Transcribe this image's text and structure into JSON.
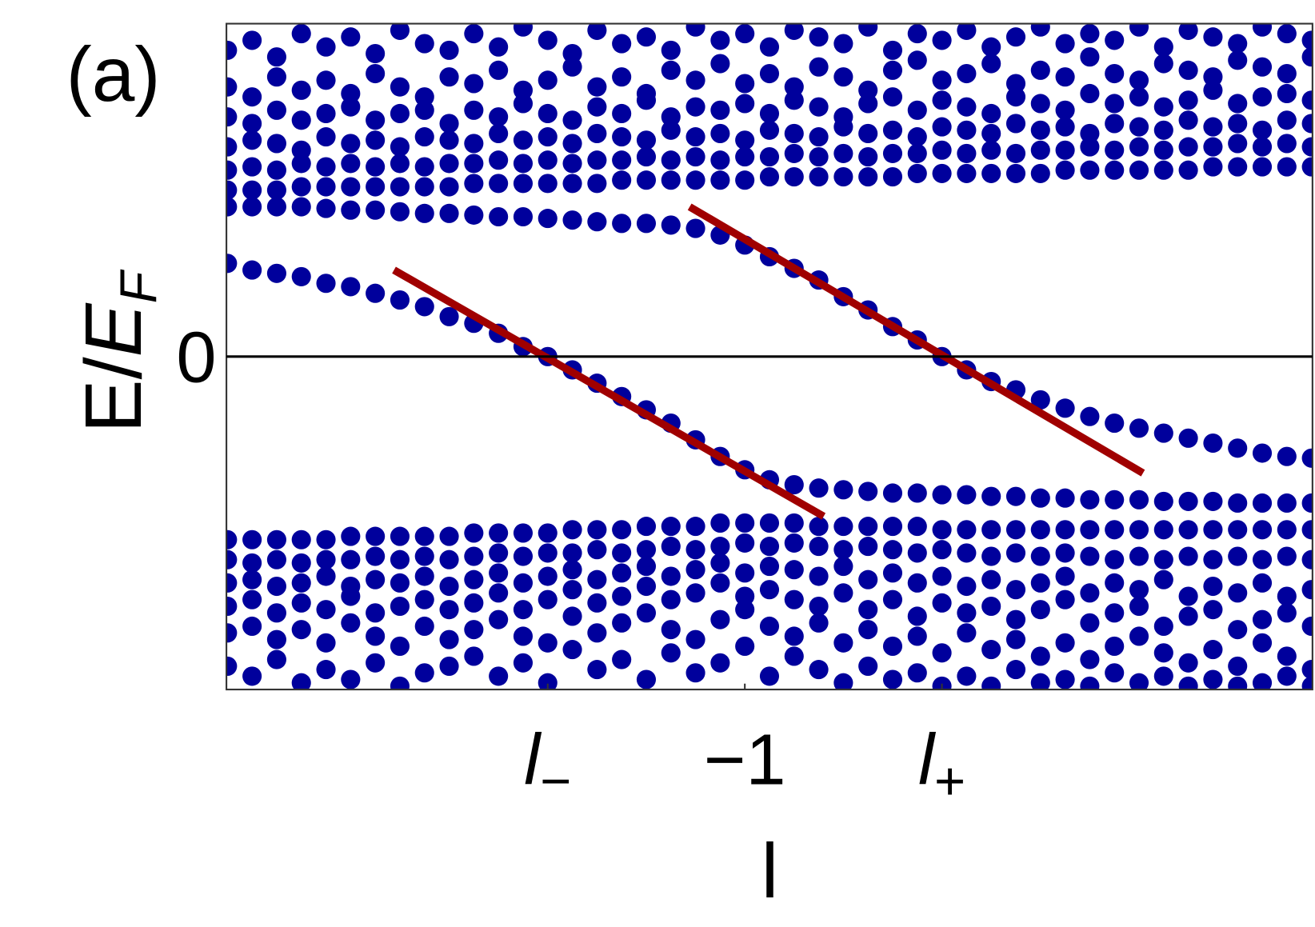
{
  "chart_data": {
    "type": "scatter",
    "panel_label": "(a)",
    "xlabel": "l",
    "ylabel": "E/EF",
    "xlim": [
      -3.63,
      1.88
    ],
    "ylim": [
      -1,
      1
    ],
    "xticks": [
      {
        "value": -2,
        "label": "l−"
      },
      {
        "value": -1,
        "label": "−1"
      },
      {
        "value": 0,
        "label": "l+"
      }
    ],
    "yticks": [
      0
    ],
    "grid": true,
    "x": [
      -3.625,
      -3.5,
      -3.375,
      -3.25,
      -3.125,
      -3,
      -2.875,
      -2.75,
      -2.625,
      -2.5,
      -2.375,
      -2.25,
      -2.125,
      -2,
      -1.875,
      -1.75,
      -1.625,
      -1.5,
      -1.375,
      -1.25,
      -1.125,
      -1,
      -0.875,
      -0.75,
      -0.625,
      -0.5,
      -0.375,
      -0.25,
      -0.125,
      0,
      0.125,
      0.25,
      0.375,
      0.5,
      0.625,
      0.75,
      0.875,
      1,
      1.125,
      1.25,
      1.375,
      1.5,
      1.625,
      1.75,
      1.875
    ],
    "series": [
      {
        "color": "#00009c",
        "values": [
          0.28,
          0.26,
          0.25,
          0.24,
          0.22,
          0.21,
          0.19,
          0.17,
          0.15,
          0.12,
          0.1,
          0.07,
          0.03,
          0,
          -0.04,
          -0.08,
          -0.12,
          -0.16,
          -0.2,
          -0.25,
          -0.3,
          -0.34,
          -0.37,
          -0.385,
          -0.395,
          -0.4,
          -0.405,
          -0.41,
          -0.41,
          -0.415,
          -0.415,
          -0.42,
          -0.42,
          -0.425,
          -0.425,
          -0.43,
          -0.43,
          -0.43,
          -0.435,
          -0.435,
          -0.435,
          -0.44,
          -0.44,
          -0.44,
          -0.44
        ]
      },
      {
        "color": "#00009c",
        "values": [
          0.45,
          0.45,
          0.45,
          0.45,
          0.445,
          0.44,
          0.44,
          0.435,
          0.43,
          0.43,
          0.425,
          0.42,
          0.42,
          0.415,
          0.41,
          0.405,
          0.4,
          0.4,
          0.395,
          0.385,
          0.365,
          0.335,
          0.3,
          0.265,
          0.23,
          0.18,
          0.14,
          0.09,
          0.05,
          0,
          -0.04,
          -0.075,
          -0.1,
          -0.13,
          -0.155,
          -0.18,
          -0.2,
          -0.215,
          -0.23,
          -0.245,
          -0.26,
          -0.275,
          -0.29,
          -0.3,
          -0.305
        ]
      },
      {
        "color": "#00009c",
        "values": [
          0.5,
          0.5,
          0.5,
          0.51,
          0.51,
          0.51,
          0.51,
          0.51,
          0.51,
          0.51,
          0.52,
          0.52,
          0.52,
          0.52,
          0.52,
          0.52,
          0.53,
          0.53,
          0.53,
          0.53,
          0.53,
          0.53,
          0.54,
          0.54,
          0.54,
          0.54,
          0.54,
          0.54,
          0.55,
          0.55,
          0.55,
          0.55,
          0.55,
          0.55,
          0.56,
          0.56,
          0.56,
          0.56,
          0.56,
          0.56,
          0.57,
          0.57,
          0.57,
          0.57,
          0.57
        ]
      },
      {
        "color": "#00009c",
        "values": [
          0.56,
          0.57,
          0.56,
          0.58,
          0.57,
          0.58,
          0.57,
          0.58,
          0.57,
          0.58,
          0.58,
          0.59,
          0.58,
          0.59,
          0.58,
          0.59,
          0.59,
          0.6,
          0.59,
          0.6,
          0.59,
          0.6,
          0.6,
          0.61,
          0.6,
          0.61,
          0.6,
          0.61,
          0.61,
          0.62,
          0.61,
          0.62,
          0.61,
          0.62,
          0.62,
          0.63,
          0.62,
          0.63,
          0.62,
          0.63,
          0.63,
          0.64,
          0.63,
          0.64,
          0.63
        ]
      },
      {
        "color": "#00009c",
        "values": [
          0.63,
          0.65,
          0.64,
          0.62,
          0.66,
          0.64,
          0.65,
          0.63,
          0.66,
          0.65,
          0.64,
          0.67,
          0.65,
          0.66,
          0.64,
          0.67,
          0.66,
          0.65,
          0.68,
          0.66,
          0.67,
          0.65,
          0.68,
          0.67,
          0.66,
          0.69,
          0.67,
          0.68,
          0.66,
          0.69,
          0.68,
          0.67,
          0.7,
          0.68,
          0.69,
          0.67,
          0.7,
          0.69,
          0.68,
          0.71,
          0.69,
          0.7,
          0.68,
          0.71,
          0.7
        ]
      },
      {
        "color": "#00009c",
        "values": [
          0.72,
          0.7,
          0.74,
          0.71,
          0.73,
          0.75,
          0.71,
          0.73,
          0.74,
          0.7,
          0.74,
          0.72,
          0.76,
          0.73,
          0.71,
          0.75,
          0.73,
          0.77,
          0.72,
          0.75,
          0.74,
          0.76,
          0.73,
          0.77,
          0.75,
          0.72,
          0.76,
          0.78,
          0.74,
          0.77,
          0.75,
          0.73,
          0.78,
          0.76,
          0.74,
          0.79,
          0.76,
          0.78,
          0.75,
          0.77,
          0.8,
          0.76,
          0.78,
          0.79,
          0.77
        ]
      },
      {
        "color": "#00009c",
        "values": [
          0.81,
          0.78,
          0.84,
          0.8,
          0.83,
          0.79,
          0.85,
          0.81,
          0.78,
          0.84,
          0.82,
          0.86,
          0.8,
          0.83,
          0.87,
          0.81,
          0.84,
          0.79,
          0.86,
          0.83,
          0.88,
          0.82,
          0.85,
          0.81,
          0.87,
          0.84,
          0.8,
          0.86,
          0.89,
          0.83,
          0.85,
          0.88,
          0.82,
          0.86,
          0.84,
          0.9,
          0.85,
          0.83,
          0.88,
          0.86,
          0.84,
          0.89,
          0.87,
          0.85,
          0.9
        ]
      },
      {
        "color": "#00009c",
        "values": [
          0.92,
          0.95,
          0.9,
          0.97,
          0.93,
          0.96,
          0.91,
          0.98,
          0.94,
          0.92,
          0.97,
          0.93,
          0.99,
          0.95,
          0.91,
          0.98,
          0.94,
          0.96,
          0.92,
          0.99,
          0.95,
          0.97,
          0.93,
          0.98,
          0.96,
          0.94,
          0.99,
          0.92,
          0.97,
          0.95,
          0.98,
          0.93,
          0.96,
          0.99,
          0.94,
          0.97,
          0.95,
          0.99,
          0.93,
          0.98,
          0.96,
          0.94,
          0.99,
          0.97,
          0.95
        ]
      },
      {
        "color": "#00009c",
        "values": [
          -0.55,
          -0.55,
          -0.55,
          -0.55,
          -0.55,
          -0.54,
          -0.54,
          -0.54,
          -0.54,
          -0.54,
          -0.53,
          -0.53,
          -0.53,
          -0.53,
          -0.52,
          -0.52,
          -0.52,
          -0.51,
          -0.51,
          -0.51,
          -0.5,
          -0.5,
          -0.5,
          -0.5,
          -0.51,
          -0.51,
          -0.51,
          -0.51,
          -0.51,
          -0.52,
          -0.52,
          -0.52,
          -0.52,
          -0.52,
          -0.52,
          -0.52,
          -0.52,
          -0.52,
          -0.52,
          -0.52,
          -0.52,
          -0.52,
          -0.52,
          -0.52,
          -0.52
        ]
      },
      {
        "color": "#00009c",
        "values": [
          -0.61,
          -0.62,
          -0.61,
          -0.62,
          -0.61,
          -0.61,
          -0.6,
          -0.61,
          -0.6,
          -0.61,
          -0.6,
          -0.59,
          -0.6,
          -0.59,
          -0.59,
          -0.58,
          -0.59,
          -0.58,
          -0.57,
          -0.58,
          -0.57,
          -0.56,
          -0.57,
          -0.56,
          -0.57,
          -0.58,
          -0.57,
          -0.58,
          -0.59,
          -0.58,
          -0.59,
          -0.6,
          -0.59,
          -0.6,
          -0.59,
          -0.6,
          -0.61,
          -0.6,
          -0.61,
          -0.6,
          -0.61,
          -0.6,
          -0.61,
          -0.6,
          -0.61
        ]
      },
      {
        "color": "#00009c",
        "values": [
          -0.68,
          -0.67,
          -0.69,
          -0.68,
          -0.66,
          -0.69,
          -0.67,
          -0.68,
          -0.66,
          -0.69,
          -0.67,
          -0.65,
          -0.68,
          -0.66,
          -0.64,
          -0.67,
          -0.65,
          -0.63,
          -0.66,
          -0.64,
          -0.62,
          -0.65,
          -0.63,
          -0.64,
          -0.66,
          -0.63,
          -0.67,
          -0.65,
          -0.68,
          -0.66,
          -0.69,
          -0.67,
          -0.7,
          -0.68,
          -0.66,
          -0.71,
          -0.68,
          -0.7,
          -0.67,
          -0.72,
          -0.69,
          -0.71,
          -0.68,
          -0.72,
          -0.7
        ]
      },
      {
        "color": "#00009c",
        "values": [
          -0.75,
          -0.73,
          -0.77,
          -0.74,
          -0.76,
          -0.72,
          -0.77,
          -0.75,
          -0.73,
          -0.76,
          -0.74,
          -0.71,
          -0.76,
          -0.73,
          -0.7,
          -0.74,
          -0.72,
          -0.69,
          -0.73,
          -0.71,
          -0.68,
          -0.72,
          -0.7,
          -0.73,
          -0.75,
          -0.71,
          -0.76,
          -0.73,
          -0.78,
          -0.74,
          -0.77,
          -0.75,
          -0.79,
          -0.76,
          -0.73,
          -0.8,
          -0.77,
          -0.75,
          -0.81,
          -0.78,
          -0.76,
          -0.82,
          -0.79,
          -0.77,
          -0.81
        ]
      },
      {
        "color": "#00009c",
        "values": [
          -0.83,
          -0.81,
          -0.85,
          -0.82,
          -0.86,
          -0.8,
          -0.84,
          -0.87,
          -0.81,
          -0.85,
          -0.82,
          -0.79,
          -0.84,
          -0.86,
          -0.78,
          -0.83,
          -0.8,
          -0.77,
          -0.82,
          -0.85,
          -0.79,
          -0.76,
          -0.81,
          -0.84,
          -0.8,
          -0.86,
          -0.82,
          -0.87,
          -0.84,
          -0.89,
          -0.83,
          -0.88,
          -0.85,
          -0.9,
          -0.86,
          -0.91,
          -0.87,
          -0.84,
          -0.89,
          -0.92,
          -0.88,
          -0.93,
          -0.86,
          -0.9,
          -0.94
        ]
      },
      {
        "color": "#00009c",
        "values": [
          -0.93,
          -0.96,
          -0.91,
          -0.98,
          -0.94,
          -0.97,
          -0.92,
          -0.99,
          -0.95,
          -0.93,
          -0.9,
          -0.96,
          -0.92,
          -0.98,
          -0.88,
          -0.94,
          -0.91,
          -0.97,
          -0.89,
          -0.95,
          -0.92,
          -0.87,
          -0.96,
          -0.9,
          -0.94,
          -0.98,
          -0.93,
          -0.97,
          -0.95,
          -0.99,
          -0.96,
          -0.99,
          -0.94,
          -0.98,
          -0.97,
          -0.99,
          -0.95,
          -0.98,
          -0.96,
          -0.99,
          -0.97,
          -0.99,
          -0.98,
          -0.96,
          -0.99
        ]
      }
    ],
    "fit_lines": [
      {
        "color": "#a00000",
        "x": [
          -2.78,
          -0.6
        ],
        "y": [
          0.26,
          -0.48
        ]
      },
      {
        "color": "#a00000",
        "x": [
          -1.28,
          1.02
        ],
        "y": [
          0.45,
          -0.35
        ]
      }
    ]
  }
}
